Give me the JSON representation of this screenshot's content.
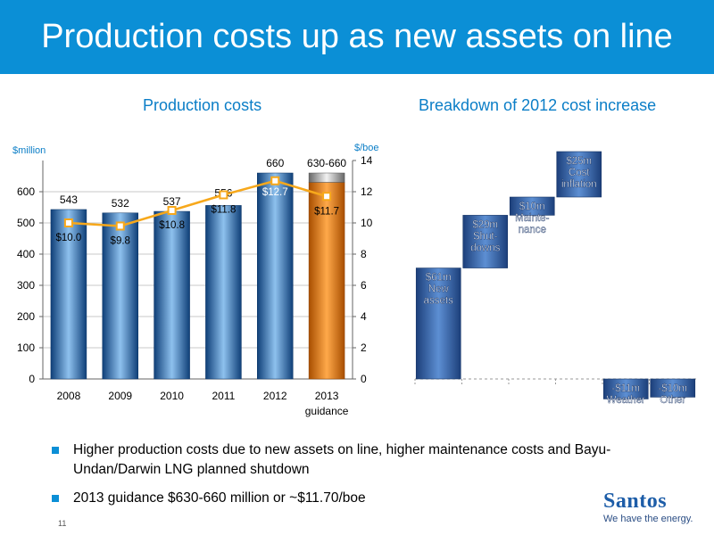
{
  "header": {
    "title": "Production costs up as new assets on line"
  },
  "page_number": "11",
  "logo": {
    "name": "Santos",
    "tagline": "We have the energy."
  },
  "bullets": [
    {
      "text": "Higher production costs due to new assets on line, higher maintenance costs and Bayu-Undan/Darwin LNG planned shutdown"
    },
    {
      "text": "2013 guidance $630-660 million or ~$11.70/boe"
    }
  ],
  "colors": {
    "accent": "#0b8fd6",
    "bar_blue": "#1f6fb5",
    "bar_orange": "#f07d00",
    "line_orange": "#f7a81b",
    "waterfall": "#3468b0"
  },
  "chart_data": [
    {
      "type": "bar",
      "title": "Production costs",
      "ylabel": "$million",
      "y2label": "$/boe",
      "categories": [
        "2008",
        "2009",
        "2010",
        "2011",
        "2012",
        "2013\nguidance"
      ],
      "category_labels": [
        "2008",
        "2009",
        "2010",
        "2011",
        "2012",
        "2013",
        "guidance"
      ],
      "ylim": [
        0,
        700
      ],
      "yticks": [
        "0",
        "100",
        "200",
        "300",
        "400",
        "500",
        "600"
      ],
      "y2lim": [
        0,
        14
      ],
      "y2ticks": [
        "0",
        "2",
        "4",
        "6",
        "8",
        "10",
        "12",
        "14"
      ],
      "series": [
        {
          "values": [
            543,
            532,
            537,
            556,
            660,
            645
          ],
          "range_last": [
            630,
            660
          ],
          "labels": [
            "543",
            "532",
            "537",
            "556",
            "660",
            "630-660"
          ]
        },
        {
          "type": "line",
          "axis": "right",
          "values": [
            10.0,
            9.8,
            10.8,
            11.8,
            12.7,
            11.7
          ],
          "labels": [
            "$10.0",
            "$9.8",
            "$10.8",
            "$11.8",
            "$12.7",
            "$11.7"
          ]
        }
      ]
    },
    {
      "type": "bar",
      "title": "Breakdown of 2012 cost increase",
      "categories": [
        "New assets",
        "Shutdowns",
        "Maintenance",
        "Cost inflation",
        "Weather",
        "Other"
      ],
      "values": [
        61,
        29,
        10,
        25,
        -11,
        -10
      ],
      "labels": [
        [
          "$61m",
          "New",
          "assets"
        ],
        [
          "$29m",
          "Shut-",
          "downs"
        ],
        [
          "$10m",
          "Mainte-",
          "nance"
        ],
        [
          "$25m",
          "Cost",
          "inflation"
        ],
        [
          "-$11m",
          "Weather"
        ],
        [
          "-$10m",
          "Other"
        ]
      ]
    }
  ]
}
